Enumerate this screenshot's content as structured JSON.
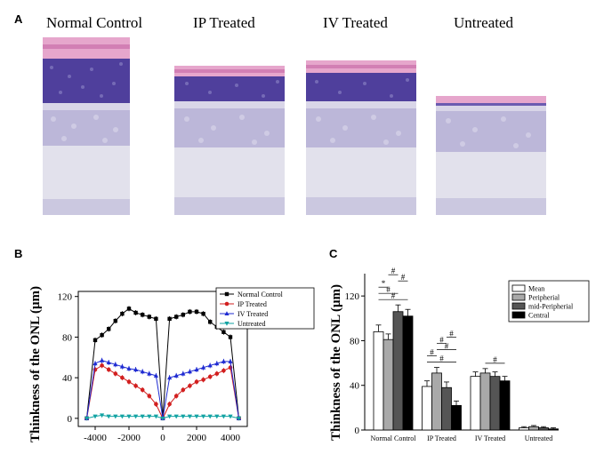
{
  "panels": {
    "a_letter": "A",
    "b_letter": "B",
    "c_letter": "C"
  },
  "histology": {
    "groups": [
      {
        "label": "Normal Control",
        "relative_thickness": 1.0
      },
      {
        "label": "IP Treated",
        "relative_thickness": 0.74
      },
      {
        "label": "IV Treated",
        "relative_thickness": 0.8
      },
      {
        "label": "Untreated",
        "relative_thickness": 0.05
      }
    ],
    "colors": {
      "ganglion_pink": "#e6a6cc",
      "onl_purple": "#4f3f9c",
      "inl_lilac": "#b9b5d8",
      "background_pale": "#e4e3ee"
    }
  },
  "chart_data": [
    {
      "type": "line",
      "panel": "B",
      "ylabel": "Thinkness of the ONL (μm)",
      "xlim": [
        -5000,
        5000
      ],
      "ylim": [
        -8,
        125
      ],
      "xticks": [
        -4000,
        -2000,
        0,
        2000,
        4000
      ],
      "yticks": [
        0,
        40,
        80,
        120
      ],
      "legend_position": "top-right",
      "x": [
        -4500,
        -4000,
        -3600,
        -3200,
        -2800,
        -2400,
        -2000,
        -1600,
        -1200,
        -800,
        -400,
        0,
        400,
        800,
        1200,
        1600,
        2000,
        2400,
        2800,
        3200,
        3600,
        4000,
        4500
      ],
      "series": [
        {
          "name": "Normal Control",
          "color": "#000000",
          "marker": "square",
          "values": [
            0,
            77,
            82,
            88,
            96,
            103,
            108,
            104,
            102,
            100,
            98,
            0,
            98,
            100,
            102,
            105,
            105,
            103,
            95,
            90,
            85,
            80,
            0
          ]
        },
        {
          "name": "IP Treated",
          "color": "#d21f1f",
          "marker": "circle",
          "values": [
            0,
            48,
            52,
            48,
            44,
            40,
            36,
            32,
            28,
            22,
            14,
            0,
            14,
            22,
            28,
            32,
            36,
            38,
            41,
            44,
            47,
            50,
            0
          ]
        },
        {
          "name": "IV Treated",
          "color": "#1f2bd2",
          "marker": "triangle",
          "values": [
            0,
            54,
            57,
            55,
            53,
            51,
            49,
            48,
            46,
            44,
            42,
            0,
            40,
            42,
            44,
            46,
            48,
            50,
            52,
            54,
            56,
            56,
            0
          ]
        },
        {
          "name": "Untreated",
          "color": "#12a3a3",
          "marker": "triangle-down",
          "values": [
            0,
            2,
            3,
            2,
            2,
            2,
            2,
            2,
            2,
            2,
            2,
            0,
            2,
            2,
            2,
            2,
            2,
            2,
            2,
            2,
            2,
            2,
            0
          ]
        }
      ]
    },
    {
      "type": "bar",
      "panel": "C",
      "ylabel": "Thinkness of the ONL (μm)",
      "ylim": [
        0,
        140
      ],
      "yticks": [
        0,
        40,
        80,
        120
      ],
      "legend_position": "top-right",
      "categories": [
        "Normal Control",
        "IP Treated",
        "IV Treated",
        "Untreated"
      ],
      "series": [
        {
          "name": "Mean",
          "fill": "#ffffff",
          "values": [
            88,
            39,
            48,
            2
          ],
          "errors": [
            6,
            5,
            4,
            1
          ]
        },
        {
          "name": "Peripherial",
          "fill": "#a9a9a9",
          "values": [
            81,
            51,
            51,
            3
          ],
          "errors": [
            5,
            5,
            4,
            1
          ]
        },
        {
          "name": "mid-Peripherial",
          "fill": "#555555",
          "values": [
            106,
            38,
            48,
            2
          ],
          "errors": [
            6,
            5,
            4,
            1
          ]
        },
        {
          "name": "Central",
          "fill": "#000000",
          "values": [
            102,
            22,
            44,
            1
          ],
          "errors": [
            6,
            4,
            4,
            1
          ]
        }
      ],
      "annotations": [
        {
          "text": "#",
          "group": 0,
          "pair": [
            0,
            3
          ]
        },
        {
          "text": "#",
          "group": 0,
          "pair": [
            0,
            2
          ]
        },
        {
          "text": "*",
          "group": 0,
          "pair": [
            0,
            1
          ]
        },
        {
          "text": "#",
          "group": 0,
          "pair": [
            2,
            3
          ]
        },
        {
          "text": "#",
          "group": 0,
          "pair": [
            1,
            2
          ]
        },
        {
          "text": "#",
          "group": 1,
          "pair": [
            0,
            3
          ]
        },
        {
          "text": "#",
          "group": 1,
          "pair": [
            0,
            1
          ]
        },
        {
          "text": "#",
          "group": 1,
          "pair": [
            1,
            3
          ]
        },
        {
          "text": "#",
          "group": 1,
          "pair": [
            1,
            2
          ]
        },
        {
          "text": "#",
          "group": 1,
          "pair": [
            2,
            3
          ]
        },
        {
          "text": "#",
          "group": 2,
          "pair": [
            1,
            3
          ]
        }
      ]
    }
  ]
}
